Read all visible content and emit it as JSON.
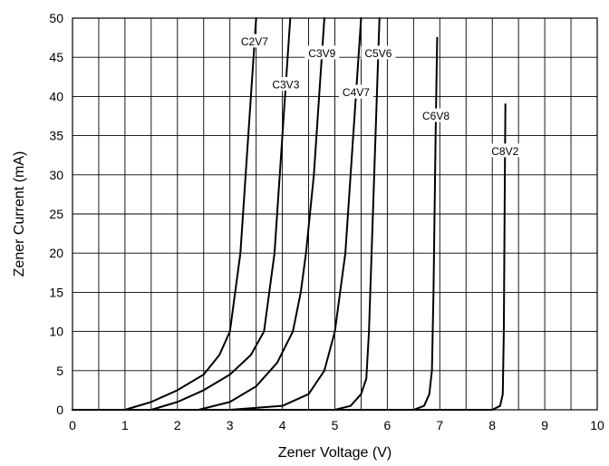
{
  "chart_data": {
    "type": "line",
    "title": "",
    "xlabel": "Zener Voltage (V)",
    "ylabel": "Zener Current (mA)",
    "xlim": [
      0,
      10
    ],
    "ylim": [
      0,
      50
    ],
    "x_ticks": [
      0,
      1,
      2,
      3,
      4,
      5,
      6,
      7,
      8,
      9,
      10
    ],
    "y_ticks": [
      0,
      5,
      10,
      15,
      20,
      25,
      30,
      35,
      40,
      45,
      50
    ],
    "grid": true,
    "minor_x_grid_step": 0.5,
    "legend": "none",
    "line_color": "#000000",
    "series": [
      {
        "name": "C2V7",
        "points": [
          [
            0.0,
            0
          ],
          [
            1.0,
            0
          ],
          [
            1.5,
            1.0
          ],
          [
            2.0,
            2.5
          ],
          [
            2.5,
            4.5
          ],
          [
            2.8,
            7
          ],
          [
            3.0,
            10
          ],
          [
            3.1,
            15
          ],
          [
            3.2,
            20
          ],
          [
            3.3,
            30
          ],
          [
            3.4,
            40
          ],
          [
            3.5,
            50
          ]
        ]
      },
      {
        "name": "C3V3",
        "points": [
          [
            0.0,
            0
          ],
          [
            1.5,
            0
          ],
          [
            2.0,
            1.0
          ],
          [
            2.5,
            2.5
          ],
          [
            3.0,
            4.5
          ],
          [
            3.4,
            7
          ],
          [
            3.65,
            10
          ],
          [
            3.75,
            15
          ],
          [
            3.85,
            20
          ],
          [
            3.95,
            30
          ],
          [
            4.05,
            40
          ],
          [
            4.15,
            50
          ]
        ]
      },
      {
        "name": "C3V9",
        "points": [
          [
            0.0,
            0
          ],
          [
            2.4,
            0
          ],
          [
            3.0,
            1.0
          ],
          [
            3.5,
            3.0
          ],
          [
            3.9,
            6
          ],
          [
            4.2,
            10
          ],
          [
            4.35,
            15
          ],
          [
            4.45,
            20
          ],
          [
            4.6,
            30
          ],
          [
            4.7,
            40
          ],
          [
            4.8,
            50
          ]
        ]
      },
      {
        "name": "C4V7",
        "points": [
          [
            0.0,
            0
          ],
          [
            3.0,
            0
          ],
          [
            4.0,
            0.5
          ],
          [
            4.5,
            2.0
          ],
          [
            4.8,
            5.0
          ],
          [
            5.0,
            10
          ],
          [
            5.1,
            15
          ],
          [
            5.2,
            20
          ],
          [
            5.3,
            30
          ],
          [
            5.4,
            40
          ],
          [
            5.5,
            50
          ]
        ]
      },
      {
        "name": "C5V6",
        "points": [
          [
            0.0,
            0
          ],
          [
            5.0,
            0
          ],
          [
            5.3,
            0.5
          ],
          [
            5.5,
            2.0
          ],
          [
            5.6,
            4.0
          ],
          [
            5.65,
            10
          ],
          [
            5.7,
            20
          ],
          [
            5.75,
            30
          ],
          [
            5.8,
            40
          ],
          [
            5.85,
            50
          ]
        ]
      },
      {
        "name": "C6V8",
        "points": [
          [
            0.0,
            0
          ],
          [
            6.5,
            0
          ],
          [
            6.7,
            0.5
          ],
          [
            6.8,
            2.0
          ],
          [
            6.85,
            5
          ],
          [
            6.88,
            15
          ],
          [
            6.9,
            25
          ],
          [
            6.92,
            35
          ],
          [
            6.95,
            47.5
          ]
        ]
      },
      {
        "name": "C8V2",
        "points": [
          [
            0.0,
            0
          ],
          [
            8.0,
            0
          ],
          [
            8.15,
            0.5
          ],
          [
            8.2,
            2.0
          ],
          [
            8.22,
            10
          ],
          [
            8.23,
            20
          ],
          [
            8.24,
            30
          ],
          [
            8.25,
            39
          ]
        ]
      }
    ]
  }
}
